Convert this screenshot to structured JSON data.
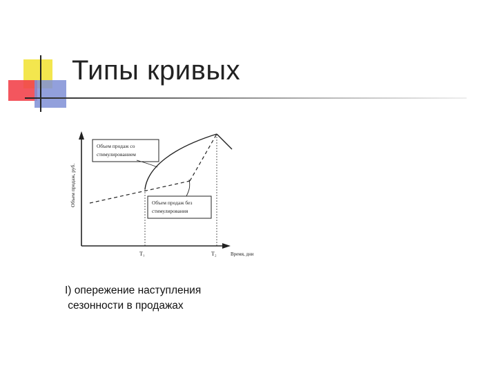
{
  "slide": {
    "title": "Типы кривых"
  },
  "diagram": {
    "y_axis_label": "Объем продаж, руб.",
    "x_axis_label": "Время, дни",
    "t1_label": "T₁",
    "t2_label": "T₂",
    "callout_stimulated": [
      "Объем продаж со",
      "стимулированием"
    ],
    "callout_unstimulated": [
      "Объем продаж без",
      "стимулирования"
    ]
  },
  "caption": {
    "lines": [
      "I) опережение наступления",
      " сезонности в продажах"
    ]
  }
}
